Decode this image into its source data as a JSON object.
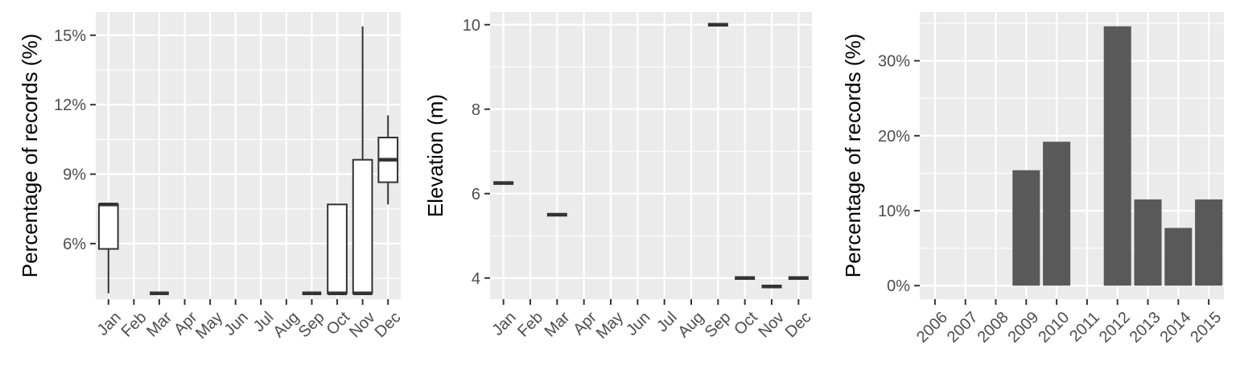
{
  "chart_data": [
    {
      "type": "boxplot",
      "ylabel": "Percentage of records (%)",
      "categories": [
        "Jan",
        "Feb",
        "Mar",
        "Apr",
        "May",
        "Jun",
        "Jul",
        "Aug",
        "Sep",
        "Oct",
        "Nov",
        "Dec"
      ],
      "ylim": [
        3.6,
        16.0
      ],
      "y_ticks": [
        6,
        9,
        12,
        15
      ],
      "y_tick_labels": [
        "6%",
        "9%",
        "12%",
        "15%"
      ],
      "boxes": [
        {
          "category": "Jan",
          "whisker_low": 3.85,
          "q1": 5.77,
          "median": 7.69,
          "q3": 7.69,
          "whisker_high": 7.69
        },
        {
          "category": "Mar",
          "whisker_low": 3.85,
          "q1": 3.85,
          "median": 3.85,
          "q3": 3.85,
          "whisker_high": 3.85
        },
        {
          "category": "Sep",
          "whisker_low": 3.85,
          "q1": 3.85,
          "median": 3.85,
          "q3": 3.85,
          "whisker_high": 3.85
        },
        {
          "category": "Oct",
          "whisker_low": 3.85,
          "q1": 3.85,
          "median": 3.85,
          "q3": 7.69,
          "whisker_high": 7.69
        },
        {
          "category": "Nov",
          "whisker_low": 3.85,
          "q1": 3.85,
          "median": 3.85,
          "q3": 9.62,
          "whisker_high": 15.38
        },
        {
          "category": "Dec",
          "whisker_low": 7.69,
          "q1": 8.65,
          "median": 9.62,
          "q3": 10.58,
          "whisker_high": 11.54
        }
      ]
    },
    {
      "type": "boxplot",
      "ylabel": "Elevation (m)",
      "categories": [
        "Jan",
        "Feb",
        "Mar",
        "Apr",
        "May",
        "Jun",
        "Jul",
        "Aug",
        "Sep",
        "Oct",
        "Nov",
        "Dec"
      ],
      "ylim": [
        3.5,
        10.3
      ],
      "y_ticks": [
        4,
        6,
        8,
        10
      ],
      "y_tick_labels": [
        "4",
        "6",
        "8",
        "10"
      ],
      "boxes": [
        {
          "category": "Jan",
          "whisker_low": 6.25,
          "q1": 6.25,
          "median": 6.25,
          "q3": 6.25,
          "whisker_high": 6.25
        },
        {
          "category": "Mar",
          "whisker_low": 5.5,
          "q1": 5.5,
          "median": 5.5,
          "q3": 5.5,
          "whisker_high": 5.5
        },
        {
          "category": "Sep",
          "whisker_low": 10,
          "q1": 10,
          "median": 10,
          "q3": 10,
          "whisker_high": 10
        },
        {
          "category": "Oct",
          "whisker_low": 4,
          "q1": 4,
          "median": 4,
          "q3": 4,
          "whisker_high": 4
        },
        {
          "category": "Nov",
          "whisker_low": 3.8,
          "q1": 3.8,
          "median": 3.8,
          "q3": 3.8,
          "whisker_high": 3.8
        },
        {
          "category": "Dec",
          "whisker_low": 4,
          "q1": 4,
          "median": 4,
          "q3": 4,
          "whisker_high": 4
        }
      ]
    },
    {
      "type": "bar",
      "ylabel": "Percentage of records (%)",
      "categories": [
        "2006",
        "2007",
        "2008",
        "2009",
        "2010",
        "2011",
        "2012",
        "2013",
        "2014",
        "2015"
      ],
      "values": [
        0,
        0,
        0,
        15.4,
        19.2,
        0,
        34.6,
        11.5,
        7.7,
        11.5
      ],
      "ylim": [
        -1.8,
        36.5
      ],
      "y_ticks": [
        0,
        10,
        20,
        30
      ],
      "y_tick_labels": [
        "0%",
        "10%",
        "20%",
        "30%"
      ],
      "bar_color": "#595959"
    }
  ],
  "colors": {
    "panel_background": "#ebebeb",
    "grid": "#ffffff",
    "box_line": "#333333",
    "tick_text": "#4d4d4d"
  }
}
